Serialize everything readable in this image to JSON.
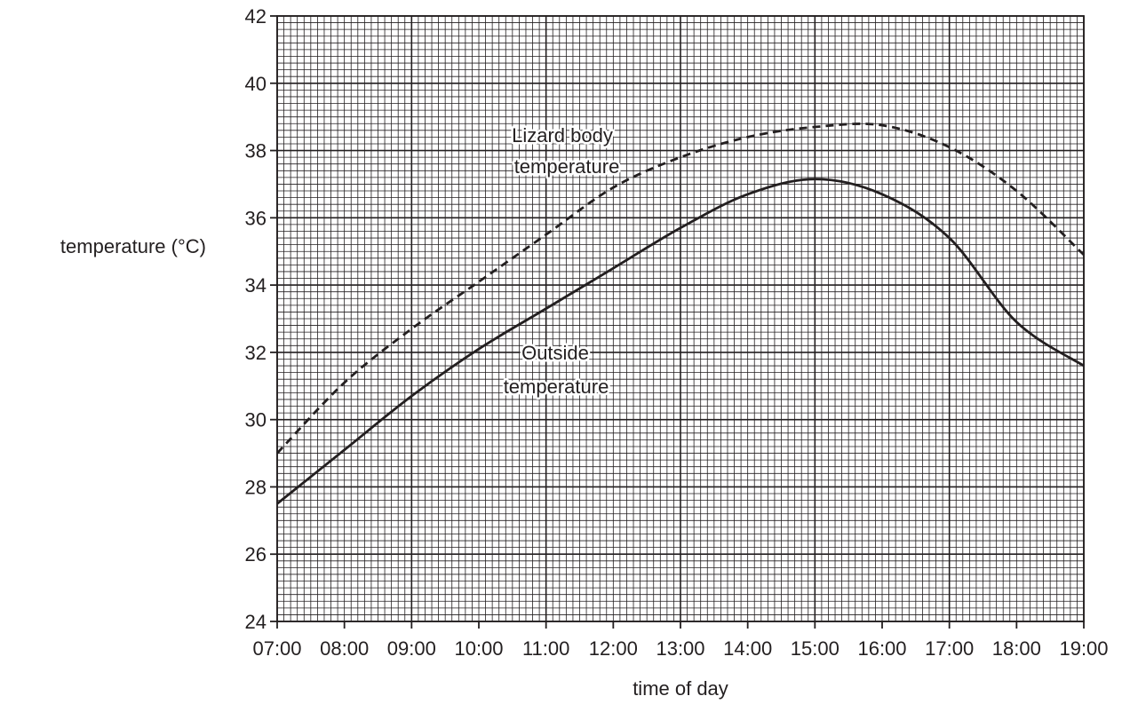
{
  "chart_data": {
    "type": "line",
    "title": "",
    "xlabel": "time of day",
    "ylabel": "temperature (°C)",
    "x": [
      "07:00",
      "08:00",
      "09:00",
      "10:00",
      "11:00",
      "12:00",
      "13:00",
      "14:00",
      "15:00",
      "16:00",
      "17:00",
      "18:00",
      "19:00"
    ],
    "xlim": [
      "07:00",
      "19:00"
    ],
    "ylim": [
      24,
      42
    ],
    "yticks": [
      24,
      26,
      28,
      30,
      32,
      34,
      36,
      38,
      40,
      42
    ],
    "grid": true,
    "legend": "none",
    "series": [
      {
        "name": "Lizard body temperature",
        "line_style": "dashed",
        "values": [
          29.0,
          31.1,
          32.7,
          34.1,
          35.5,
          36.9,
          37.8,
          38.4,
          38.7,
          38.75,
          38.1,
          36.8,
          34.9
        ],
        "label_lines": [
          "Lizard body",
          "temperature"
        ]
      },
      {
        "name": "Outside temperature",
        "line_style": "solid",
        "values": [
          27.5,
          29.1,
          30.7,
          32.1,
          33.3,
          34.5,
          35.7,
          36.7,
          37.15,
          36.7,
          35.4,
          32.9,
          31.6
        ],
        "label_lines": [
          "Outside",
          "temperature"
        ]
      }
    ],
    "colors": {
      "ink": "#231f20",
      "background": "#ffffff"
    }
  }
}
